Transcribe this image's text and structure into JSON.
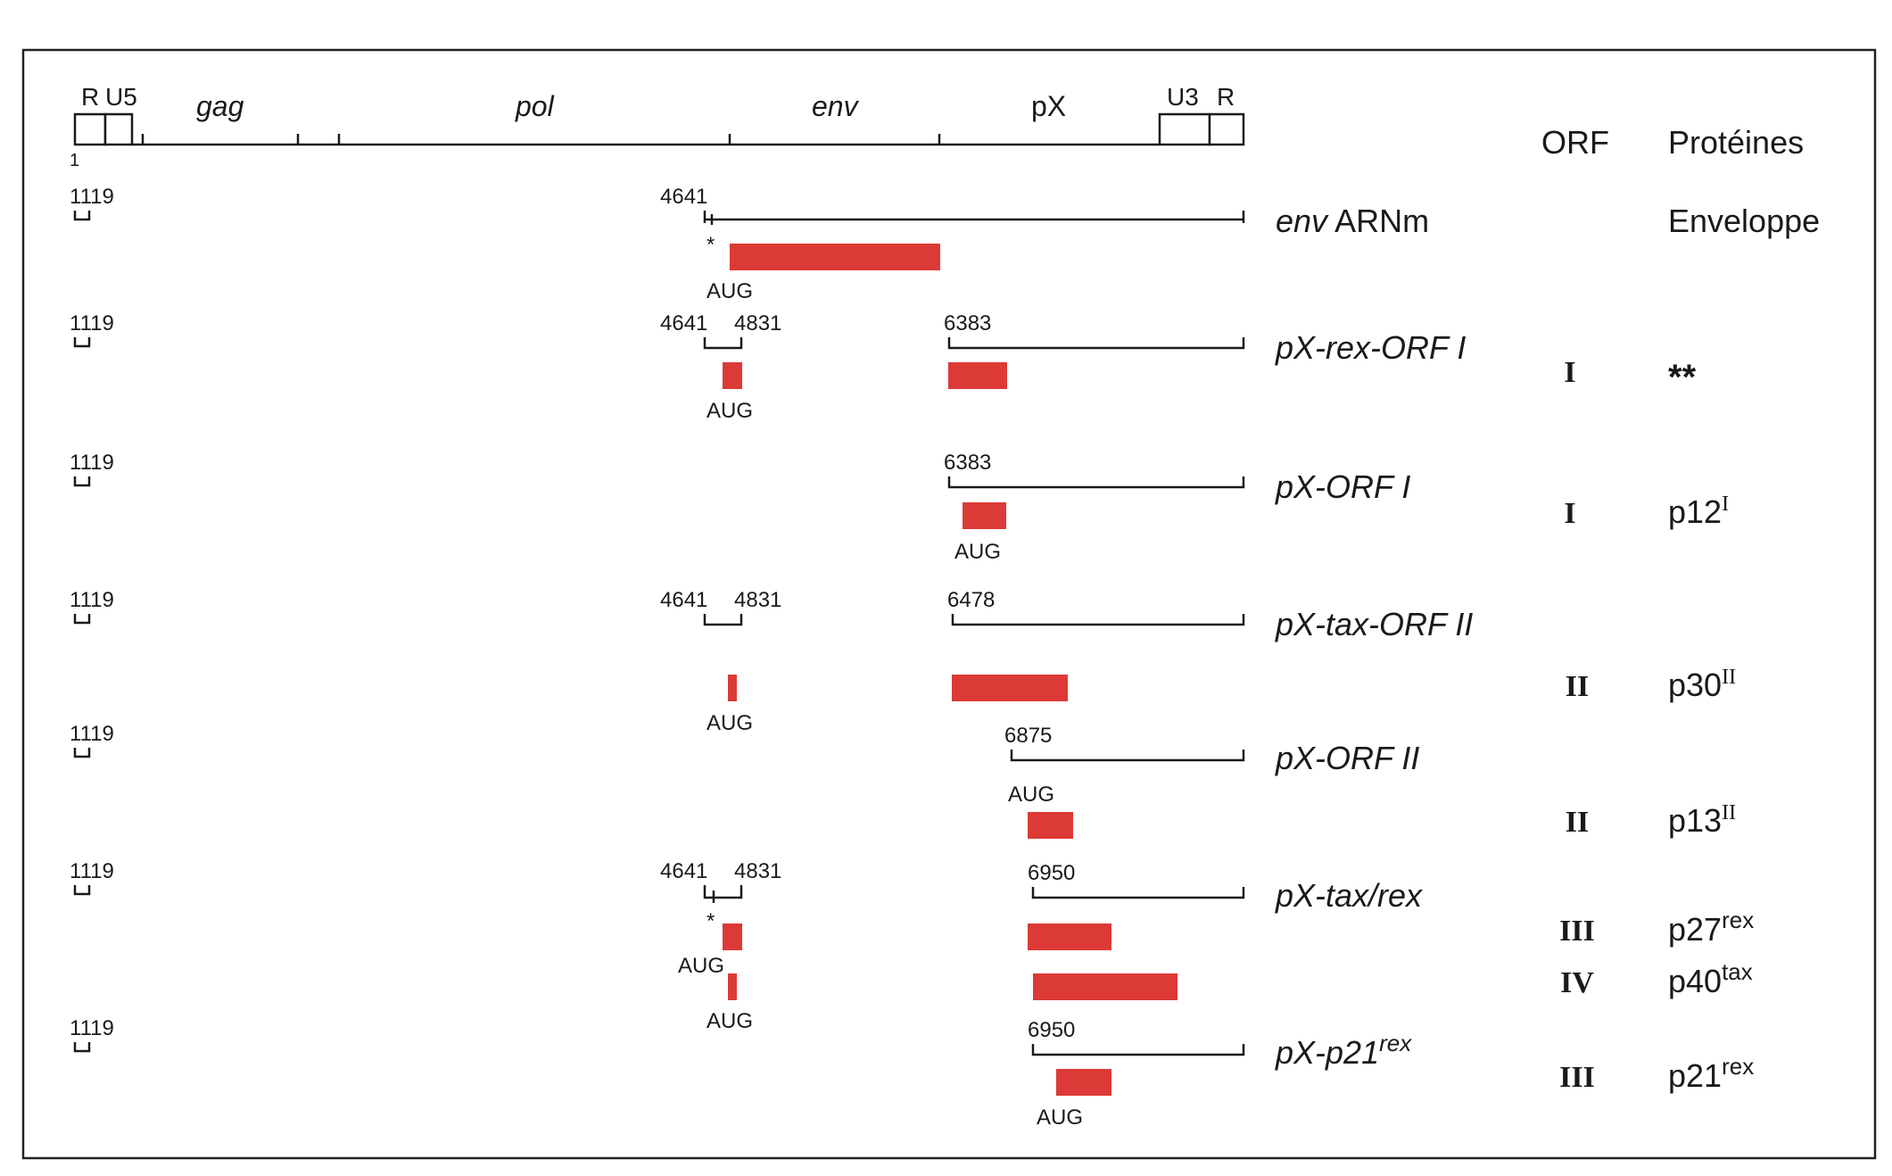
{
  "genome": {
    "start_label": "1",
    "ltr5": [
      "R",
      "U5"
    ],
    "genes": [
      "gag",
      "pol",
      "env",
      "pX"
    ],
    "ltr3": [
      "U3",
      "R"
    ]
  },
  "headers": {
    "orf": "ORF",
    "proteins": "Protéines"
  },
  "colors": {
    "orf_bar": "#dc3a36",
    "line": "#1a1a1a",
    "frame": "#222222"
  },
  "transcripts": [
    {
      "leader": "1119",
      "positions": [
        "4641",
        "",
        ""
      ],
      "name": "env ARNm",
      "aug": [
        "AUG"
      ],
      "star": "*",
      "orf": [
        ""
      ],
      "protein": [
        "Enveloppe"
      ]
    },
    {
      "leader": "1119",
      "positions": [
        "4641",
        "4831",
        "6383"
      ],
      "name": "pX-rex-ORF I",
      "aug": [
        "AUG"
      ],
      "orf": [
        "I"
      ],
      "protein": [
        "**"
      ]
    },
    {
      "leader": "1119",
      "positions": [
        "6383"
      ],
      "name": "pX-ORF I",
      "aug": [
        "AUG"
      ],
      "orf": [
        "I"
      ],
      "protein": [
        "p12",
        "I"
      ]
    },
    {
      "leader": "1119",
      "positions": [
        "4641",
        "4831",
        "6478"
      ],
      "name": "pX-tax-ORF II",
      "aug": [
        "AUG"
      ],
      "orf": [
        "II"
      ],
      "protein": [
        "p30",
        "II"
      ]
    },
    {
      "leader": "1119",
      "positions": [
        "6875"
      ],
      "name": "pX-ORF II",
      "aug": [
        "AUG"
      ],
      "orf": [
        "II"
      ],
      "protein": [
        "p13",
        "II"
      ]
    },
    {
      "leader": "1119",
      "positions": [
        "4641",
        "4831",
        "6950"
      ],
      "name": "pX-tax/rex",
      "aug": [
        "AUG",
        "AUG"
      ],
      "star": "*",
      "orf": [
        "III",
        "IV"
      ],
      "protein": [
        "p27",
        "rex",
        "p40",
        "tax"
      ]
    },
    {
      "leader": "1119",
      "positions": [
        "6950"
      ],
      "name": "pX-p21",
      "name_sup": "rex",
      "aug": [
        "AUG"
      ],
      "orf": [
        "III"
      ],
      "protein": [
        "p21",
        "rex"
      ]
    }
  ]
}
